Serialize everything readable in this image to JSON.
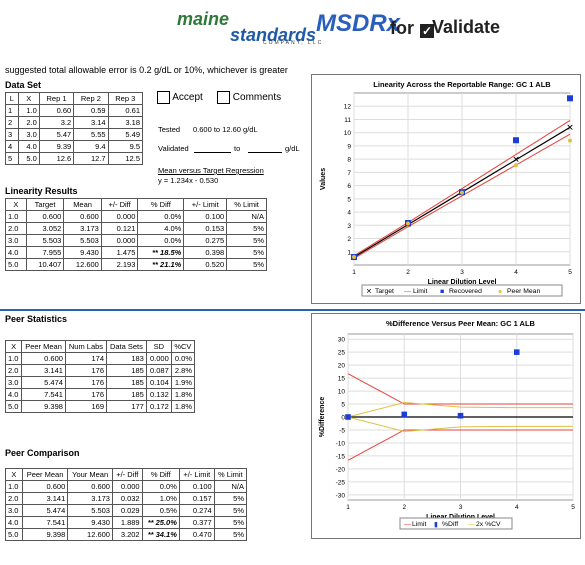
{
  "brand": {
    "maine": "maine",
    "standards": "standards",
    "company": "COMPANY, LLC",
    "msdrx": "MSDRx",
    "for": "for",
    "validate": "Validate"
  },
  "note": "suggested total allowable error is 0.2 g/dL or 10%, whichever is greater",
  "dataset": {
    "title": "Data Set",
    "headers": [
      "L",
      "X",
      "Rep 1",
      "Rep 2",
      "Rep 3"
    ],
    "rows": [
      [
        "1",
        "1.0",
        "0.60",
        "0.59",
        "0.61"
      ],
      [
        "2",
        "2.0",
        "3.2",
        "3.14",
        "3.18"
      ],
      [
        "3",
        "3.0",
        "5.47",
        "5.55",
        "5.49"
      ],
      [
        "4",
        "4.0",
        "9.39",
        "9.4",
        "9.5"
      ],
      [
        "5",
        "5.0",
        "12.6",
        "12.7",
        "12.5"
      ]
    ]
  },
  "accept_label": "Accept",
  "comments_label": "Comments",
  "tested_label": "Tested",
  "tested_value": "0.600 to 12.60 g/dL",
  "validated_label": "Validated",
  "validated_to": "to",
  "validated_unit": "g/dL",
  "regression_title": "Mean versus Target Regression",
  "regression_eq": "y = 1.234x - 0.530",
  "linearity": {
    "title": "Linearity Results",
    "headers": [
      "X",
      "Target",
      "Mean",
      "+/- Diff",
      "% Diff",
      "+/- Limit",
      "% Limit"
    ],
    "rows": [
      [
        "1.0",
        "0.600",
        "0.600",
        "0.000",
        "0.0%",
        "0.100",
        "N/A"
      ],
      [
        "2.0",
        "3.052",
        "3.173",
        "0.121",
        "4.0%",
        "0.153",
        "5%"
      ],
      [
        "3.0",
        "5.503",
        "5.503",
        "0.000",
        "0.0%",
        "0.275",
        "5%"
      ],
      [
        "4.0",
        "7.955",
        "9.430",
        "1.475",
        "** 18.5%",
        "0.398",
        "5%"
      ],
      [
        "5.0",
        "10.407",
        "12.600",
        "2.193",
        "** 21.1%",
        "0.520",
        "5%"
      ]
    ]
  },
  "peer_stats": {
    "title": "Peer Statistics",
    "headers": [
      "X",
      "Peer Mean",
      "Num Labs",
      "Data Sets",
      "SD",
      "%CV"
    ],
    "rows": [
      [
        "1.0",
        "0.600",
        "174",
        "183",
        "0.000",
        "0.0%"
      ],
      [
        "2.0",
        "3.141",
        "176",
        "185",
        "0.087",
        "2.8%"
      ],
      [
        "3.0",
        "5.474",
        "176",
        "185",
        "0.104",
        "1.9%"
      ],
      [
        "4.0",
        "7.541",
        "176",
        "185",
        "0.132",
        "1.8%"
      ],
      [
        "5.0",
        "9.398",
        "169",
        "177",
        "0.172",
        "1.8%"
      ]
    ]
  },
  "peer_comp": {
    "title": "Peer Comparison",
    "headers": [
      "X",
      "Peer Mean",
      "Your Mean",
      "+/- Diff",
      "% Diff",
      "+/- Limit",
      "% Limit"
    ],
    "rows": [
      [
        "1.0",
        "0.600",
        "0.600",
        "0.000",
        "0.0%",
        "0.100",
        "N/A"
      ],
      [
        "2.0",
        "3.141",
        "3.173",
        "0.032",
        "1.0%",
        "0.157",
        "5%"
      ],
      [
        "3.0",
        "5.474",
        "5.503",
        "0.029",
        "0.5%",
        "0.274",
        "5%"
      ],
      [
        "4.0",
        "7.541",
        "9.430",
        "1.889",
        "** 25.0%",
        "0.377",
        "5%"
      ],
      [
        "5.0",
        "9.398",
        "12.600",
        "3.202",
        "** 34.1%",
        "0.470",
        "5%"
      ]
    ]
  },
  "chart_data": [
    {
      "type": "line",
      "title": "Linearity Across the Reportable Range:  GC 1 ALB",
      "xlabel": "Linear Dilution Level",
      "ylabel": "Values",
      "xlim": [
        1,
        5
      ],
      "ylim": [
        0,
        13
      ],
      "yticks": [
        1,
        2,
        3,
        4,
        5,
        6,
        7,
        8,
        9,
        10,
        11,
        12
      ],
      "xticks": [
        1,
        2,
        3,
        4,
        5
      ],
      "x": [
        1,
        2,
        3,
        4,
        5
      ],
      "series": [
        {
          "name": "Target",
          "values": [
            0.6,
            3.052,
            5.503,
            7.955,
            10.407
          ],
          "color": "#000000"
        },
        {
          "name": "Limit",
          "values": [
            0.7,
            3.205,
            5.778,
            8.353,
            10.927
          ],
          "color": "#e8413a"
        },
        {
          "name": "Limit",
          "values": [
            0.5,
            2.899,
            5.228,
            7.557,
            9.887
          ],
          "color": "#e8413a"
        },
        {
          "name": "Recovered",
          "values": [
            0.6,
            3.173,
            5.503,
            9.43,
            12.6
          ],
          "color": "#1c3ed6"
        },
        {
          "name": "Peer Mean",
          "values": [
            0.6,
            3.141,
            5.474,
            7.541,
            9.398
          ],
          "color": "#e0c040"
        }
      ],
      "legend": [
        "Target",
        "Limit",
        "Recovered",
        "Peer Mean"
      ]
    },
    {
      "type": "line",
      "title": "%Difference Versus Peer Mean:  GC 1 ALB",
      "xlabel": "Linear Dilution Level",
      "ylabel": "%Difference",
      "xlim": [
        1,
        5
      ],
      "ylim": [
        -32,
        32
      ],
      "yticks": [
        30,
        25,
        20,
        15,
        10,
        5,
        0,
        -5,
        -10,
        -15,
        -20,
        -25,
        -30
      ],
      "xticks": [
        1,
        2,
        3,
        4,
        5
      ],
      "x": [
        1,
        2,
        3,
        4,
        5
      ],
      "series": [
        {
          "name": "Limit",
          "values": [
            16.7,
            5,
            5,
            5,
            5
          ],
          "color": "#e8413a"
        },
        {
          "name": "Limit",
          "values": [
            -16.7,
            -5,
            -5,
            -5,
            -5
          ],
          "color": "#e8413a"
        },
        {
          "name": "%Diff",
          "values": [
            0.0,
            1.0,
            0.5,
            25.0,
            34.1
          ],
          "color": "#1c3ed6"
        },
        {
          "name": "2x %CV",
          "values": [
            0.0,
            5.6,
            3.8,
            3.6,
            3.6
          ],
          "color": "#e0c040"
        },
        {
          "name": "2x %CV",
          "values": [
            0.0,
            -5.6,
            -3.8,
            -3.6,
            -3.6
          ],
          "color": "#e0c040"
        }
      ],
      "legend": [
        "Limit",
        "%Diff",
        "2x %CV"
      ]
    }
  ]
}
